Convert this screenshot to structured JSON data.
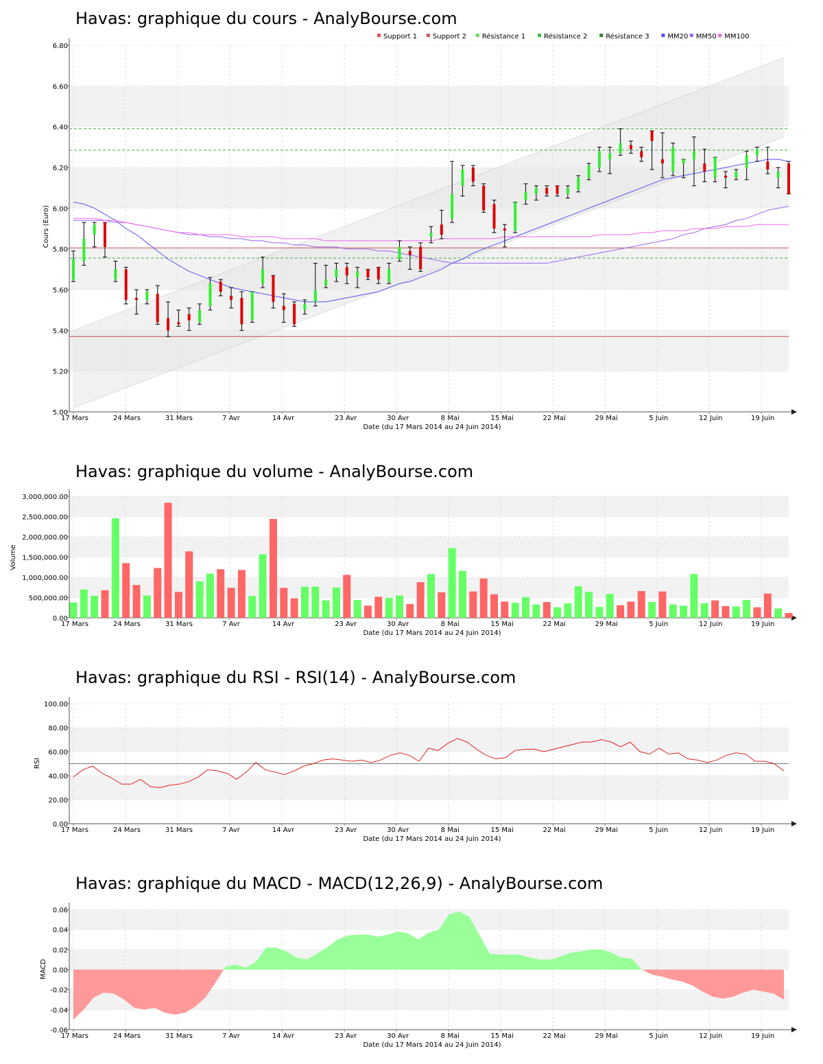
{
  "chart_data": [
    {
      "type": "candlestick",
      "title": "Havas: graphique du cours - AnalyBourse.com",
      "xlabel": "Date (du 17 Mars 2014 au 24 Juin 2014)",
      "ylabel": "Cours (Euro)",
      "ylim": [
        5.0,
        6.8
      ],
      "yticks": [
        "5.00",
        "5.20",
        "5.40",
        "5.60",
        "5.80",
        "6.00",
        "6.20",
        "6.40",
        "6.60",
        "6.80"
      ],
      "xticks": [
        "17 Mars",
        "24 Mars",
        "31 Mars",
        "7 Avr",
        "14 Avr",
        "23 Avr",
        "30 Avr",
        "8 Mai",
        "15 Mai",
        "22 Mai",
        "29 Mai",
        "5 Juin",
        "12 Juin",
        "19 Juin"
      ],
      "legend_position": "top-right",
      "legend": [
        {
          "name": "Support 1",
          "color": "#e05050"
        },
        {
          "name": "Support 2",
          "color": "#c06060"
        },
        {
          "name": "Résistance 1",
          "color": "#66dd66"
        },
        {
          "name": "Résistance 2",
          "color": "#44bb44"
        },
        {
          "name": "Résistance 3",
          "color": "#338833"
        },
        {
          "name": "MM20",
          "color": "#5555ee"
        },
        {
          "name": "MM50",
          "color": "#9966ee"
        },
        {
          "name": "MM100",
          "color": "#ee66ee"
        }
      ],
      "levels": {
        "support1": 5.37,
        "support2": 5.805,
        "resistance1": 5.755,
        "resistance2": 6.285,
        "resistance3": 6.39
      },
      "channel": {
        "upper": [
          5.4,
          6.74
        ],
        "lower": [
          5.02,
          6.35
        ]
      },
      "candles": [
        {
          "o": 5.65,
          "c": 5.75,
          "h": 5.79,
          "l": 5.64
        },
        {
          "o": 5.74,
          "c": 5.85,
          "h": 5.93,
          "l": 5.72
        },
        {
          "o": 5.87,
          "c": 5.92,
          "h": 5.93,
          "l": 5.81
        },
        {
          "o": 5.93,
          "c": 5.81,
          "h": 5.93,
          "l": 5.76
        },
        {
          "o": 5.65,
          "c": 5.7,
          "h": 5.74,
          "l": 5.64
        },
        {
          "o": 5.7,
          "c": 5.55,
          "h": 5.71,
          "l": 5.53
        },
        {
          "o": 5.56,
          "c": 5.55,
          "h": 5.6,
          "l": 5.48
        },
        {
          "o": 5.55,
          "c": 5.59,
          "h": 5.6,
          "l": 5.53
        },
        {
          "o": 5.58,
          "c": 5.44,
          "h": 5.62,
          "l": 5.43
        },
        {
          "o": 5.46,
          "c": 5.4,
          "h": 5.54,
          "l": 5.37
        },
        {
          "o": 5.44,
          "c": 5.43,
          "h": 5.5,
          "l": 5.42
        },
        {
          "o": 5.48,
          "c": 5.45,
          "h": 5.51,
          "l": 5.4
        },
        {
          "o": 5.44,
          "c": 5.5,
          "h": 5.53,
          "l": 5.43
        },
        {
          "o": 5.52,
          "c": 5.63,
          "h": 5.66,
          "l": 5.5
        },
        {
          "o": 5.64,
          "c": 5.59,
          "h": 5.65,
          "l": 5.57
        },
        {
          "o": 5.57,
          "c": 5.55,
          "h": 5.61,
          "l": 5.51
        },
        {
          "o": 5.56,
          "c": 5.43,
          "h": 5.59,
          "l": 5.4
        },
        {
          "o": 5.45,
          "c": 5.59,
          "h": 5.59,
          "l": 5.44
        },
        {
          "o": 5.63,
          "c": 5.7,
          "h": 5.76,
          "l": 5.61
        },
        {
          "o": 5.67,
          "c": 5.54,
          "h": 5.67,
          "l": 5.51
        },
        {
          "o": 5.52,
          "c": 5.5,
          "h": 5.58,
          "l": 5.44
        },
        {
          "o": 5.53,
          "c": 5.43,
          "h": 5.54,
          "l": 5.42
        },
        {
          "o": 5.5,
          "c": 5.53,
          "h": 5.55,
          "l": 5.48
        },
        {
          "o": 5.54,
          "c": 5.6,
          "h": 5.73,
          "l": 5.52
        },
        {
          "o": 5.62,
          "c": 5.65,
          "h": 5.72,
          "l": 5.61
        },
        {
          "o": 5.66,
          "c": 5.7,
          "h": 5.73,
          "l": 5.64
        },
        {
          "o": 5.71,
          "c": 5.67,
          "h": 5.73,
          "l": 5.63
        },
        {
          "o": 5.66,
          "c": 5.69,
          "h": 5.71,
          "l": 5.61
        },
        {
          "o": 5.7,
          "c": 5.66,
          "h": 5.7,
          "l": 5.65
        },
        {
          "o": 5.71,
          "c": 5.65,
          "h": 5.71,
          "l": 5.63
        },
        {
          "o": 5.64,
          "c": 5.7,
          "h": 5.73,
          "l": 5.63
        },
        {
          "o": 5.75,
          "c": 5.81,
          "h": 5.84,
          "l": 5.74
        },
        {
          "o": 5.79,
          "c": 5.77,
          "h": 5.81,
          "l": 5.7
        },
        {
          "o": 5.81,
          "c": 5.7,
          "h": 5.83,
          "l": 5.69
        },
        {
          "o": 5.86,
          "c": 5.88,
          "h": 5.91,
          "l": 5.83
        },
        {
          "o": 5.92,
          "c": 5.87,
          "h": 5.99,
          "l": 5.85
        },
        {
          "o": 5.95,
          "c": 6.07,
          "h": 6.23,
          "l": 5.93
        },
        {
          "o": 6.11,
          "c": 6.19,
          "h": 6.21,
          "l": 6.06
        },
        {
          "o": 6.2,
          "c": 6.13,
          "h": 6.21,
          "l": 6.11
        },
        {
          "o": 6.11,
          "c": 5.99,
          "h": 6.12,
          "l": 5.98
        },
        {
          "o": 6.02,
          "c": 5.9,
          "h": 6.04,
          "l": 5.88
        },
        {
          "o": 5.9,
          "c": 5.89,
          "h": 5.92,
          "l": 5.81
        },
        {
          "o": 5.89,
          "c": 6.03,
          "h": 6.03,
          "l": 5.88
        },
        {
          "o": 6.04,
          "c": 6.08,
          "h": 6.12,
          "l": 6.02
        },
        {
          "o": 6.07,
          "c": 6.1,
          "h": 6.11,
          "l": 6.04
        },
        {
          "o": 6.1,
          "c": 6.07,
          "h": 6.11,
          "l": 6.06
        },
        {
          "o": 6.11,
          "c": 6.07,
          "h": 6.11,
          "l": 6.06
        },
        {
          "o": 6.07,
          "c": 6.1,
          "h": 6.11,
          "l": 6.05
        },
        {
          "o": 6.09,
          "c": 6.15,
          "h": 6.16,
          "l": 6.08
        },
        {
          "o": 6.15,
          "c": 6.21,
          "h": 6.22,
          "l": 6.14
        },
        {
          "o": 6.2,
          "c": 6.28,
          "h": 6.3,
          "l": 6.18
        },
        {
          "o": 6.24,
          "c": 6.27,
          "h": 6.3,
          "l": 6.17
        },
        {
          "o": 6.27,
          "c": 6.32,
          "h": 6.39,
          "l": 6.26
        },
        {
          "o": 6.31,
          "c": 6.29,
          "h": 6.33,
          "l": 6.27
        },
        {
          "o": 6.28,
          "c": 6.25,
          "h": 6.3,
          "l": 6.23
        },
        {
          "o": 6.38,
          "c": 6.33,
          "h": 6.38,
          "l": 6.19
        },
        {
          "o": 6.24,
          "c": 6.22,
          "h": 6.37,
          "l": 6.15
        },
        {
          "o": 6.18,
          "c": 6.3,
          "h": 6.32,
          "l": 6.16
        },
        {
          "o": 6.22,
          "c": 6.24,
          "h": 6.24,
          "l": 6.15
        },
        {
          "o": 6.24,
          "c": 6.28,
          "h": 6.35,
          "l": 6.11
        },
        {
          "o": 6.22,
          "c": 6.18,
          "h": 6.29,
          "l": 6.13
        },
        {
          "o": 6.15,
          "c": 6.25,
          "h": 6.25,
          "l": 6.13
        },
        {
          "o": 6.16,
          "c": 6.15,
          "h": 6.18,
          "l": 6.1
        },
        {
          "o": 6.15,
          "c": 6.18,
          "h": 6.19,
          "l": 6.14
        },
        {
          "o": 6.2,
          "c": 6.26,
          "h": 6.28,
          "l": 6.14
        },
        {
          "o": 6.26,
          "c": 6.29,
          "h": 6.3,
          "l": 6.23
        },
        {
          "o": 6.23,
          "c": 6.19,
          "h": 6.3,
          "l": 6.17
        },
        {
          "o": 6.15,
          "c": 6.18,
          "h": 6.2,
          "l": 6.1
        },
        {
          "o": 6.22,
          "c": 6.07,
          "h": 6.23,
          "l": 6.07
        }
      ],
      "series": [
        {
          "name": "MM20",
          "values": [
            6.03,
            6.02,
            6.0,
            5.97,
            5.94,
            5.9,
            5.87,
            5.83,
            5.79,
            5.75,
            5.72,
            5.69,
            5.67,
            5.65,
            5.63,
            5.61,
            5.6,
            5.59,
            5.58,
            5.57,
            5.56,
            5.55,
            5.54,
            5.54,
            5.54,
            5.55,
            5.56,
            5.57,
            5.58,
            5.59,
            5.61,
            5.63,
            5.64,
            5.66,
            5.68,
            5.7,
            5.73,
            5.75,
            5.78,
            5.8,
            5.82,
            5.84,
            5.86,
            5.88,
            5.9,
            5.92,
            5.94,
            5.96,
            5.98,
            6.0,
            6.02,
            6.04,
            6.06,
            6.08,
            6.1,
            6.12,
            6.14,
            6.15,
            6.16,
            6.17,
            6.18,
            6.19,
            6.2,
            6.21,
            6.22,
            6.23,
            6.24,
            6.24,
            6.23
          ]
        },
        {
          "name": "MM50",
          "values": [
            5.94,
            5.94,
            5.94,
            5.94,
            5.93,
            5.93,
            5.92,
            5.91,
            5.9,
            5.89,
            5.88,
            5.87,
            5.87,
            5.86,
            5.86,
            5.85,
            5.85,
            5.84,
            5.84,
            5.83,
            5.83,
            5.82,
            5.82,
            5.81,
            5.81,
            5.81,
            5.8,
            5.8,
            5.8,
            5.79,
            5.79,
            5.78,
            5.77,
            5.76,
            5.75,
            5.74,
            5.73,
            5.73,
            5.73,
            5.73,
            5.73,
            5.73,
            5.73,
            5.73,
            5.73,
            5.73,
            5.74,
            5.75,
            5.76,
            5.77,
            5.78,
            5.79,
            5.8,
            5.81,
            5.82,
            5.83,
            5.84,
            5.85,
            5.87,
            5.88,
            5.9,
            5.91,
            5.92,
            5.94,
            5.95,
            5.97,
            5.99,
            6.0,
            6.01
          ]
        },
        {
          "name": "MM100",
          "values": [
            5.95,
            5.95,
            5.95,
            5.94,
            5.94,
            5.93,
            5.92,
            5.91,
            5.9,
            5.89,
            5.88,
            5.88,
            5.87,
            5.87,
            5.87,
            5.87,
            5.86,
            5.86,
            5.86,
            5.86,
            5.85,
            5.85,
            5.85,
            5.85,
            5.84,
            5.84,
            5.84,
            5.84,
            5.84,
            5.84,
            5.84,
            5.84,
            5.84,
            5.84,
            5.84,
            5.85,
            5.85,
            5.85,
            5.85,
            5.85,
            5.85,
            5.86,
            5.86,
            5.86,
            5.86,
            5.86,
            5.86,
            5.86,
            5.86,
            5.86,
            5.87,
            5.87,
            5.87,
            5.87,
            5.88,
            5.88,
            5.89,
            5.89,
            5.89,
            5.9,
            5.9,
            5.9,
            5.91,
            5.91,
            5.91,
            5.92,
            5.92,
            5.92,
            5.92
          ]
        }
      ]
    },
    {
      "type": "bar",
      "title": "Havas: graphique du volume - AnalyBourse.com",
      "xlabel": "Date (du 17 Mars 2014 au 24 Juin 2014)",
      "ylabel": "Volume",
      "ylim": [
        0,
        3000000
      ],
      "yticks": [
        "0.00",
        "500,000.00",
        "1,000,000.00",
        "1,500,000.00",
        "2,000,000.00",
        "2,500,000.00",
        "3,000,000.00"
      ],
      "xticks": [
        "17 Mars",
        "24 Mars",
        "31 Mars",
        "7 Avr",
        "14 Avr",
        "23 Avr",
        "30 Avr",
        "8 Mai",
        "15 Mai",
        "22 Mai",
        "29 Mai",
        "5 Juin",
        "12 Juin",
        "19 Juin"
      ],
      "values": [
        380000,
        700000,
        540000,
        680000,
        2460000,
        1350000,
        810000,
        550000,
        1230000,
        2840000,
        640000,
        1640000,
        900000,
        1090000,
        1200000,
        740000,
        1180000,
        540000,
        1570000,
        2440000,
        740000,
        480000,
        770000,
        770000,
        430000,
        750000,
        1060000,
        440000,
        300000,
        520000,
        490000,
        550000,
        340000,
        880000,
        1080000,
        630000,
        1720000,
        1160000,
        650000,
        970000,
        580000,
        400000,
        370000,
        510000,
        330000,
        390000,
        260000,
        360000,
        780000,
        640000,
        270000,
        590000,
        310000,
        400000,
        660000,
        390000,
        650000,
        330000,
        300000,
        1080000,
        360000,
        430000,
        290000,
        280000,
        440000,
        260000,
        600000,
        230000,
        120000
      ],
      "colors": [
        "up",
        "up",
        "up",
        "down",
        "up",
        "down",
        "down",
        "up",
        "down",
        "down",
        "down",
        "down",
        "up",
        "up",
        "down",
        "down",
        "down",
        "up",
        "up",
        "down",
        "down",
        "down",
        "up",
        "up",
        "up",
        "up",
        "down",
        "up",
        "down",
        "down",
        "up",
        "up",
        "down",
        "down",
        "up",
        "down",
        "up",
        "up",
        "down",
        "down",
        "down",
        "down",
        "up",
        "up",
        "up",
        "down",
        "up",
        "up",
        "up",
        "up",
        "up",
        "up",
        "down",
        "down",
        "down",
        "up",
        "down",
        "up",
        "up",
        "up",
        "up",
        "down",
        "down",
        "up",
        "up",
        "down",
        "down",
        "up",
        "down"
      ]
    },
    {
      "type": "line",
      "title": "Havas: graphique du RSI - RSI(14) - AnalyBourse.com",
      "xlabel": "Date (du 17 Mars 2014 au 24 Juin 2014)",
      "ylabel": "RSI",
      "ylim": [
        0,
        100
      ],
      "yticks": [
        "0.00",
        "20.00",
        "40.00",
        "60.00",
        "80.00",
        "100.00"
      ],
      "xticks": [
        "17 Mars",
        "24 Mars",
        "31 Mars",
        "7 Avr",
        "14 Avr",
        "23 Avr",
        "30 Avr",
        "8 Mai",
        "15 Mai",
        "22 Mai",
        "29 Mai",
        "5 Juin",
        "12 Juin",
        "19 Juin"
      ],
      "reference_line": 50,
      "series": [
        {
          "values": [
            39,
            45,
            48,
            42,
            38,
            33,
            33,
            37,
            31,
            30,
            32,
            33,
            35,
            39,
            45,
            44,
            42,
            37,
            43,
            51,
            45,
            43,
            41,
            44,
            48,
            50,
            53,
            54,
            53,
            52,
            53,
            51,
            53,
            57,
            59,
            57,
            52,
            63,
            61,
            67,
            71,
            68,
            62,
            57,
            54,
            55,
            61,
            62,
            62,
            60,
            62,
            64,
            66,
            68,
            68,
            70,
            68,
            64,
            68,
            60,
            58,
            63,
            58,
            59,
            54,
            53,
            51,
            53,
            57,
            59,
            58,
            52,
            52,
            50,
            44
          ]
        }
      ]
    },
    {
      "type": "area",
      "title": "Havas: graphique du MACD - MACD(12,26,9) - AnalyBourse.com",
      "xlabel": "Date (du 17 Mars 2014 au 24 Juin 2014)",
      "ylabel": "MACD",
      "ylim": [
        -0.06,
        0.06
      ],
      "yticks": [
        "-0.06",
        "-0.04",
        "-0.02",
        "0.00",
        "0.02",
        "0.04",
        "0.06"
      ],
      "xticks": [
        "17 Mars",
        "24 Mars",
        "31 Mars",
        "7 Avr",
        "14 Avr",
        "23 Avr",
        "30 Avr",
        "8 Mai",
        "15 Mai",
        "22 Mai",
        "29 Mai",
        "5 Juin",
        "12 Juin",
        "19 Juin"
      ],
      "series": [
        {
          "values": [
            -0.05,
            -0.04,
            -0.028,
            -0.023,
            -0.024,
            -0.03,
            -0.038,
            -0.04,
            -0.038,
            -0.043,
            -0.045,
            -0.043,
            -0.037,
            -0.028,
            -0.013,
            0.003,
            0.005,
            0.002,
            0.008,
            0.022,
            0.022,
            0.018,
            0.012,
            0.01,
            0.016,
            0.022,
            0.03,
            0.034,
            0.035,
            0.035,
            0.033,
            0.035,
            0.038,
            0.036,
            0.03,
            0.037,
            0.04,
            0.055,
            0.058,
            0.053,
            0.035,
            0.016,
            0.015,
            0.015,
            0.015,
            0.012,
            0.01,
            0.01,
            0.013,
            0.017,
            0.018,
            0.02,
            0.02,
            0.017,
            0.012,
            0.011,
            0.0,
            -0.005,
            -0.007,
            -0.01,
            -0.012,
            -0.016,
            -0.022,
            -0.027,
            -0.029,
            -0.027,
            -0.023,
            -0.02,
            -0.022,
            -0.024,
            -0.03
          ]
        }
      ]
    }
  ]
}
